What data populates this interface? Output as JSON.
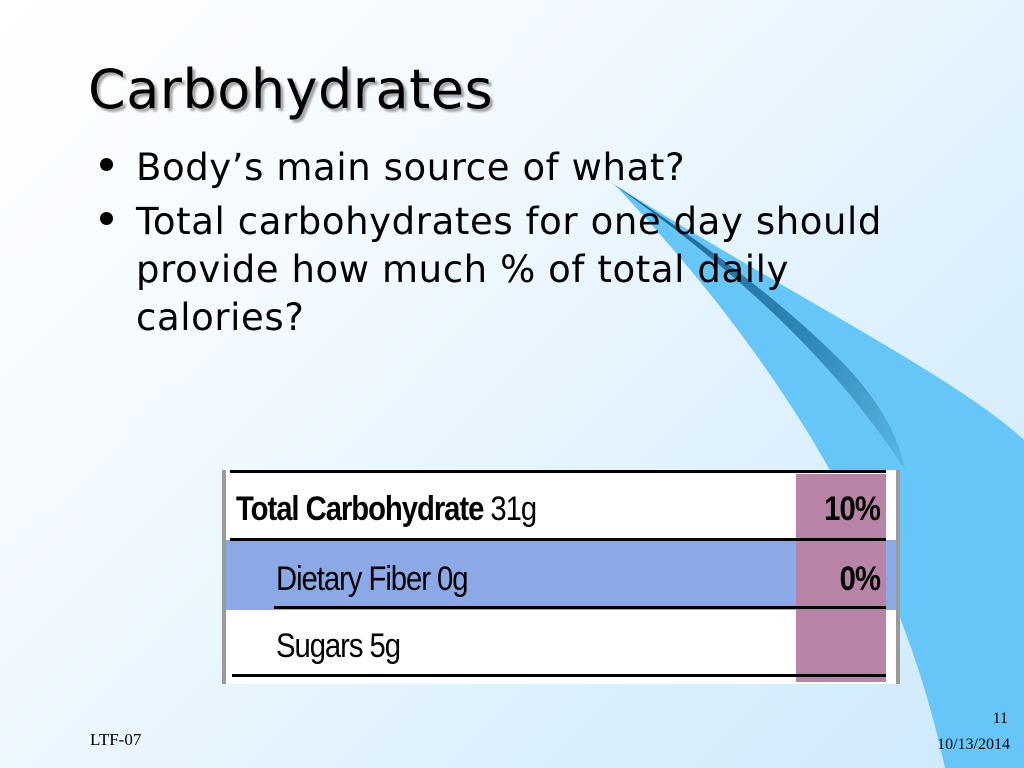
{
  "slide": {
    "title": "Carbohydrates",
    "bullets": [
      "Body’s main source of what?",
      "Total carbohydrates for one day should provide how much % of total daily calories?"
    ],
    "nutrition_label": {
      "rows": [
        {
          "label": "Total Carbohydrate",
          "amount": "31g",
          "percent": "10%"
        },
        {
          "label": "Dietary Fiber 0g",
          "percent": "0%"
        },
        {
          "label": "Sugars 5g",
          "percent": ""
        }
      ],
      "colors": {
        "highlight_row": "#8aa9e6",
        "percent_column": "#b784a8"
      }
    },
    "footer": {
      "left": "LTF-07",
      "slide_number": "11",
      "date": "10/13/2014"
    },
    "theme_colors": {
      "swoosh_light": "#66c6f7",
      "swoosh_dark": "#1f6e9c"
    }
  }
}
